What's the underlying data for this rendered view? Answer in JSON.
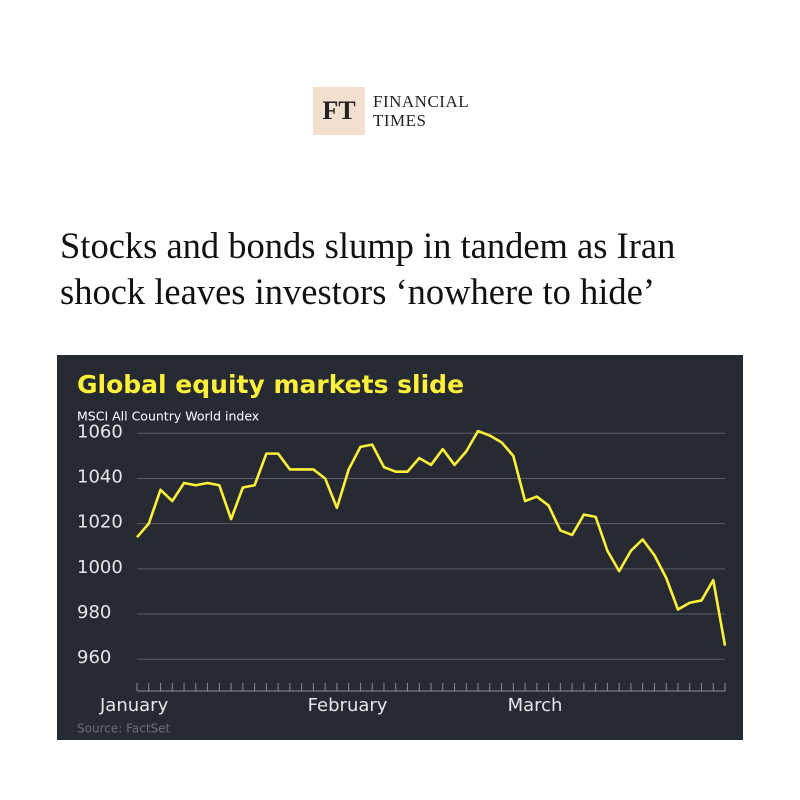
{
  "header": {
    "logo": "FT",
    "brand": [
      "FINANCIAL",
      "TIMES"
    ]
  },
  "headline": [
    "Stocks and bonds slump in tandem as Iran",
    "shock leaves investors ‘nowhere to hide’"
  ],
  "chart_data": {
    "type": "line",
    "title": "Global equity markets slide",
    "subtitle": "MSCI All Country World index",
    "source": "Source: FactSet",
    "categories": [
      "January",
      null,
      null,
      null,
      null,
      null,
      null,
      null,
      null,
      null,
      null,
      null,
      null,
      null,
      null,
      null,
      null,
      null,
      "February",
      null,
      null,
      null,
      null,
      null,
      null,
      null,
      null,
      null,
      null,
      null,
      null,
      null,
      null,
      null,
      null,
      "March",
      null,
      null,
      null,
      null,
      null,
      null,
      null,
      null,
      null,
      null,
      null,
      null,
      null,
      null,
      null
    ],
    "values": [
      1014,
      1020,
      1035,
      1030,
      1038,
      1037,
      1038,
      1037,
      1022,
      1036,
      1037,
      1051,
      1051,
      1044,
      1044,
      1044,
      1040,
      1027,
      1044,
      1054,
      1055,
      1045,
      1043,
      1043,
      1049,
      1046,
      1053,
      1046,
      1052,
      1061,
      1059,
      1056,
      1050,
      1030,
      1032,
      1028,
      1017,
      1015,
      1024,
      1023,
      1008,
      999,
      1008,
      1013,
      1006,
      996,
      982,
      985,
      986,
      995,
      966
    ],
    "color": "#fff03a",
    "ylim": [
      953,
      1065
    ],
    "yticks": [
      960,
      980,
      1000,
      1020,
      1040,
      1060
    ],
    "grid": true
  }
}
